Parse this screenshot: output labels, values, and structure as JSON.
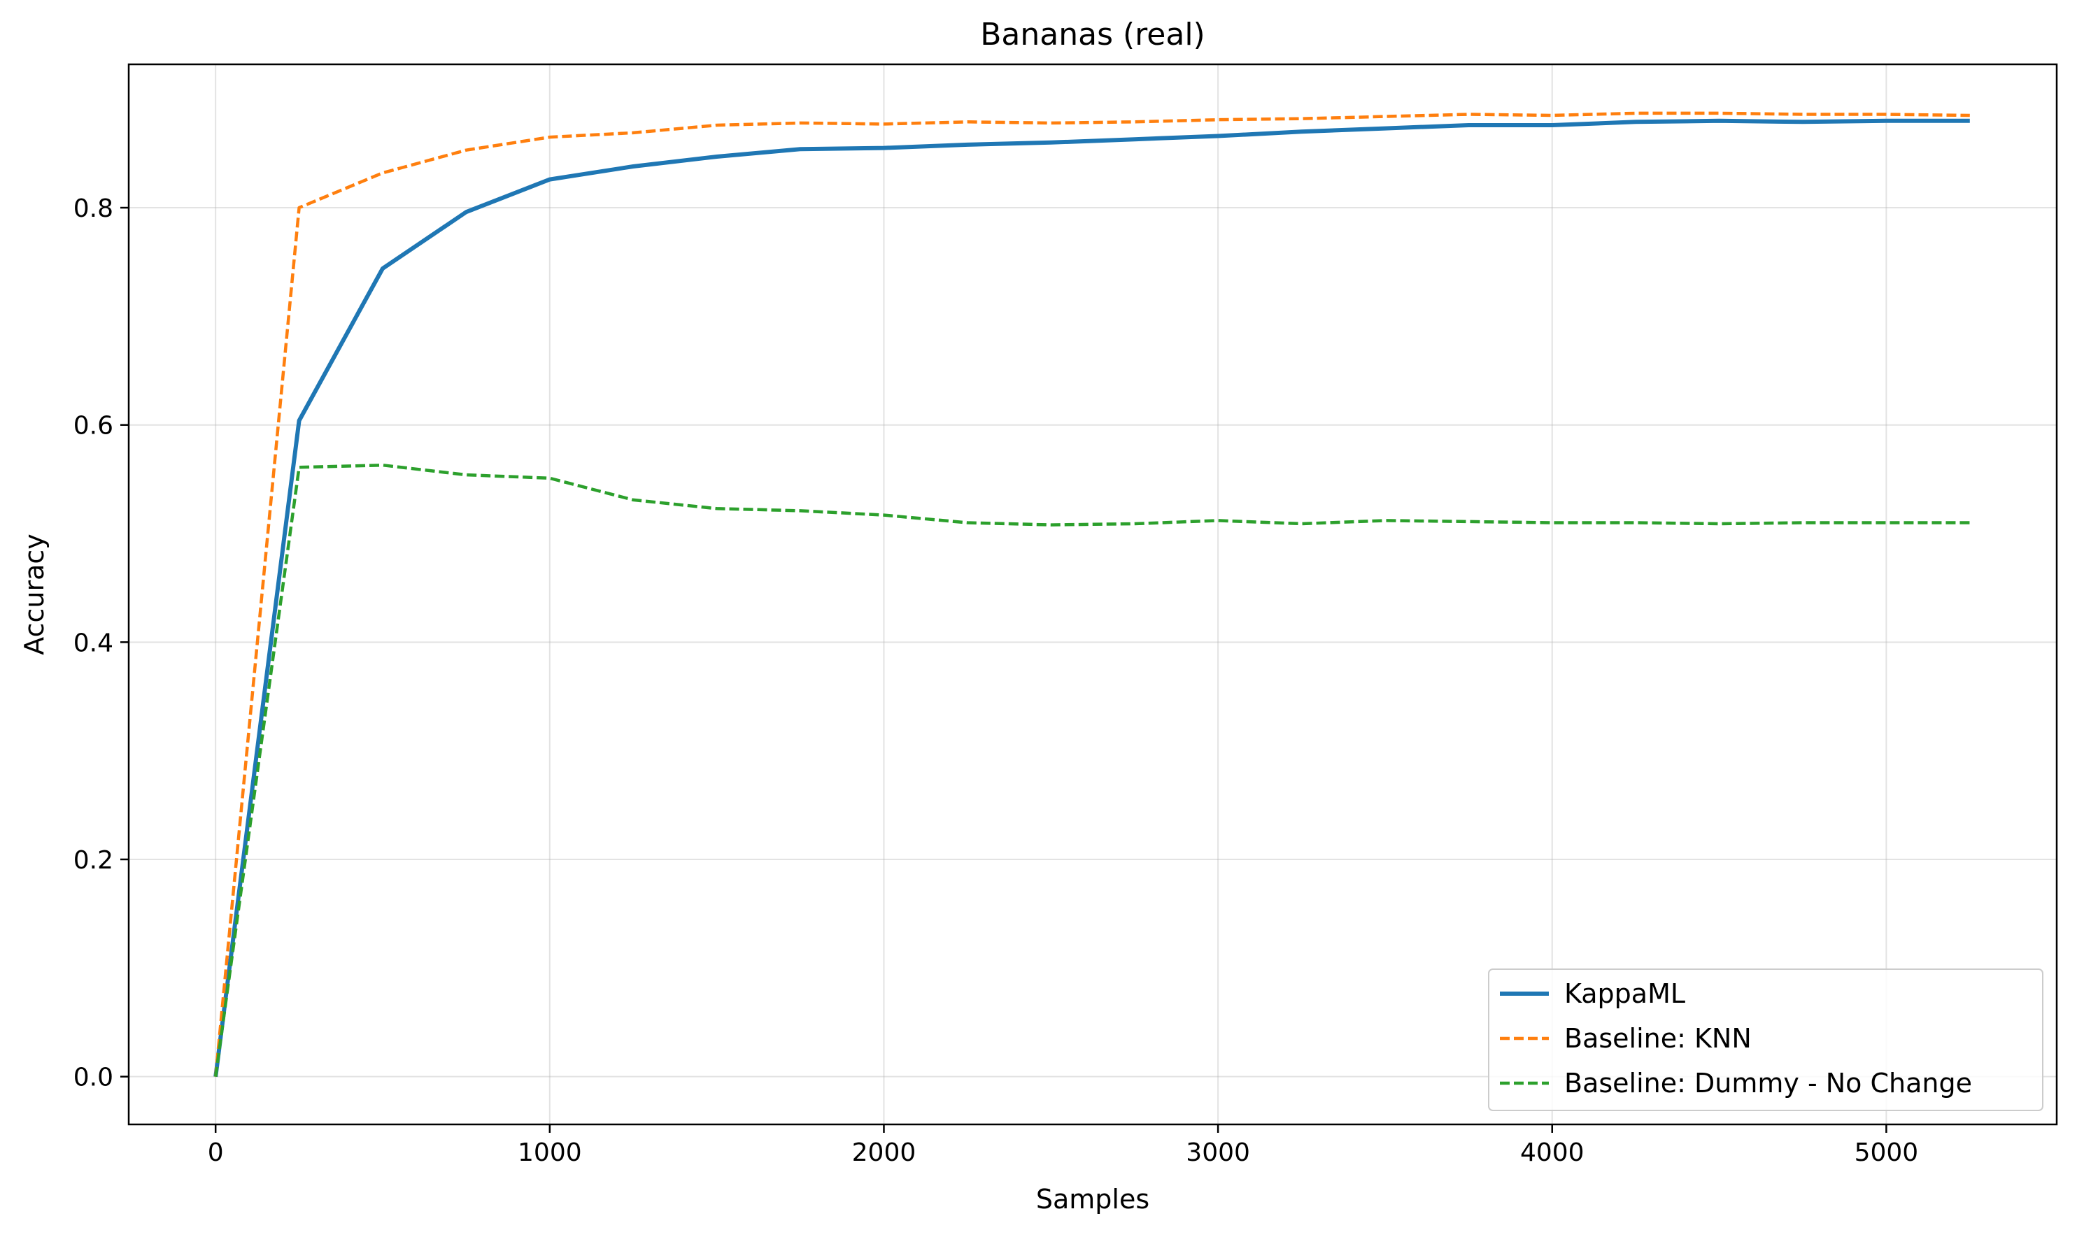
{
  "chart_data": {
    "type": "line",
    "title": "Bananas (real)",
    "xlabel": "Samples",
    "ylabel": "Accuracy",
    "xlim": [
      -260,
      5510
    ],
    "ylim": [
      -0.044,
      0.932
    ],
    "xticks": [
      0,
      1000,
      2000,
      3000,
      4000,
      5000
    ],
    "yticks": [
      0.0,
      0.2,
      0.4,
      0.6,
      0.8
    ],
    "xtick_labels": [
      "0",
      "1000",
      "2000",
      "3000",
      "4000",
      "5000"
    ],
    "ytick_labels": [
      "0.0",
      "0.2",
      "0.4",
      "0.6",
      "0.8"
    ],
    "grid": true,
    "legend_position": "bottom-right",
    "x": [
      0,
      250,
      500,
      750,
      1000,
      1250,
      1500,
      1750,
      2000,
      2250,
      2500,
      2750,
      3000,
      3250,
      3500,
      3750,
      4000,
      4250,
      4500,
      4750,
      5000,
      5250
    ],
    "series": [
      {
        "name": "KappaML",
        "color": "#1f77b4",
        "style": "solid",
        "values": [
          0.0,
          0.604,
          0.744,
          0.796,
          0.826,
          0.838,
          0.847,
          0.854,
          0.855,
          0.858,
          0.86,
          0.863,
          0.866,
          0.87,
          0.873,
          0.876,
          0.876,
          0.879,
          0.88,
          0.879,
          0.88,
          0.88
        ]
      },
      {
        "name": "Baseline: KNN",
        "color": "#ff7f0e",
        "style": "dashed",
        "values": [
          0.0,
          0.8,
          0.832,
          0.853,
          0.865,
          0.869,
          0.876,
          0.878,
          0.877,
          0.879,
          0.878,
          0.879,
          0.881,
          0.882,
          0.884,
          0.886,
          0.885,
          0.887,
          0.887,
          0.886,
          0.886,
          0.885
        ]
      },
      {
        "name": "Baseline: Dummy - No Change",
        "color": "#2ca02c",
        "style": "dashed",
        "values": [
          0.0,
          0.561,
          0.563,
          0.554,
          0.551,
          0.531,
          0.523,
          0.521,
          0.517,
          0.51,
          0.508,
          0.509,
          0.512,
          0.509,
          0.512,
          0.511,
          0.51,
          0.51,
          0.509,
          0.51,
          0.51,
          0.51
        ]
      }
    ]
  }
}
